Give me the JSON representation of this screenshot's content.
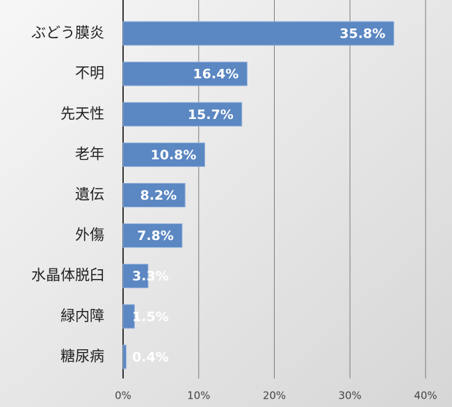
{
  "chart_data": {
    "type": "hbar",
    "categories": [
      "ぶどう膜炎",
      "不明",
      "先天性",
      "老年",
      "遺伝",
      "外傷",
      "水晶体脱臼",
      "緑内障",
      "糖尿病"
    ],
    "values": [
      35.8,
      16.4,
      15.7,
      10.8,
      8.2,
      7.8,
      3.3,
      1.5,
      0.4
    ],
    "value_labels": [
      "35.8%",
      "16.4%",
      "15.7%",
      "10.8%",
      "8.2%",
      "7.8%",
      "3.3%",
      "1.5%",
      "0.4%"
    ],
    "color": "#5b87c2",
    "xlim": [
      0,
      40
    ],
    "xticks": [
      {
        "value": 0,
        "label": "0%"
      },
      {
        "value": 10,
        "label": "10%"
      },
      {
        "value": 20,
        "label": "20%"
      },
      {
        "value": 30,
        "label": "30%"
      },
      {
        "value": 40,
        "label": "40%"
      }
    ],
    "grid": true
  }
}
